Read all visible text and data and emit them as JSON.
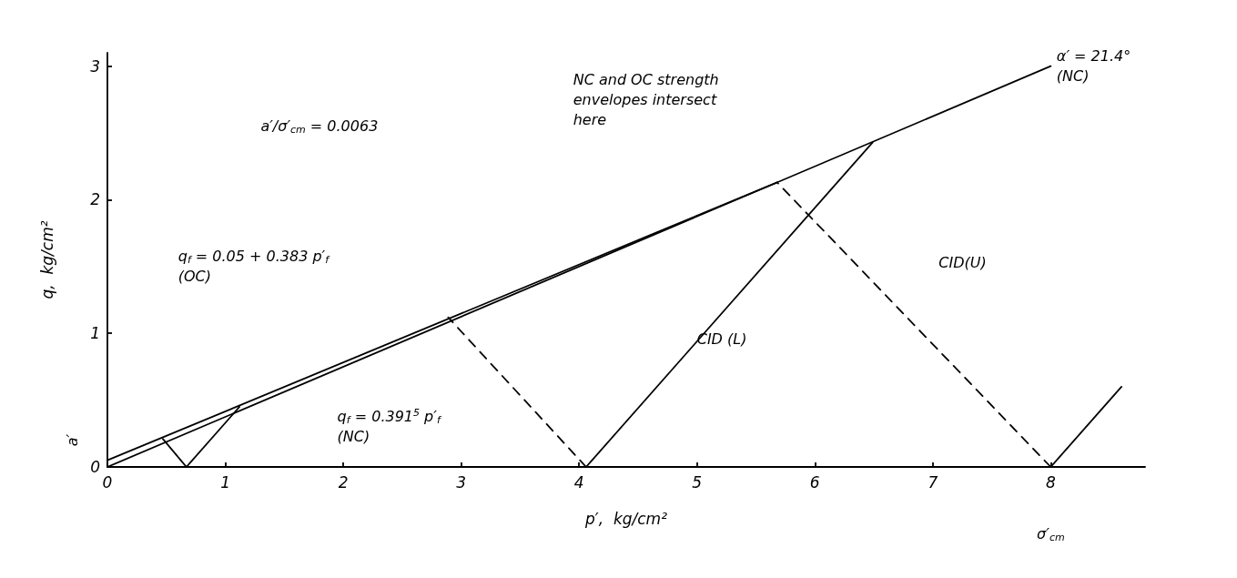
{
  "chart_data": {
    "type": "line",
    "xlabel": "p′,  kg/cm²",
    "ylabel": "q,  kg/cm²",
    "xlim": [
      0,
      8.8
    ],
    "ylim": [
      0,
      3.1
    ],
    "xticks": [
      0,
      1,
      2,
      3,
      4,
      5,
      6,
      7,
      8
    ],
    "yticks": [
      0,
      1,
      2,
      3
    ],
    "grid": false,
    "marker": "none",
    "line_style": "solid",
    "series": [
      {
        "color": "#000000",
        "x": [
          0,
          8.0
        ],
        "values": [
          0,
          3.0
        ]
      },
      {
        "color": "#000000",
        "x": [
          0,
          5.68
        ],
        "values": [
          0.05,
          2.13
        ]
      },
      {
        "color": "#000000",
        "x": [
          0.67,
          0.47
        ],
        "values": [
          0,
          0.21
        ]
      },
      {
        "color": "#000000",
        "x": [
          0.67,
          1.12
        ],
        "values": [
          0,
          0.45
        ]
      },
      {
        "color": "#000000",
        "x": [
          4.06,
          2.89
        ],
        "values": [
          0,
          1.12
        ],
        "line_style": "dashed"
      },
      {
        "color": "#000000",
        "x": [
          4.06,
          6.49
        ],
        "values": [
          0,
          2.43
        ]
      },
      {
        "color": "#000000",
        "x": [
          8,
          5.68
        ],
        "values": [
          0,
          2.13
        ],
        "line_style": "dashed"
      },
      {
        "color": "#000000",
        "x": [
          8,
          8.6
        ],
        "values": [
          0,
          0.6
        ]
      }
    ],
    "annotations": [
      "a′/σ′$_{cm}$ = 0.0063",
      "q$_{f}$ = 0.05 + 0.383 p′$_{f}$\n(OC)",
      "q$_{f}$ = 0.391$^{5}$ p′$_{f}$\n(NC)",
      "NC and OC strength\nenvelopes intersect\nhere",
      "α′ = 21.4°\n(NC)",
      "CID (L)",
      "CID(U)",
      "a′",
      "σ′$_{cm}$"
    ]
  }
}
